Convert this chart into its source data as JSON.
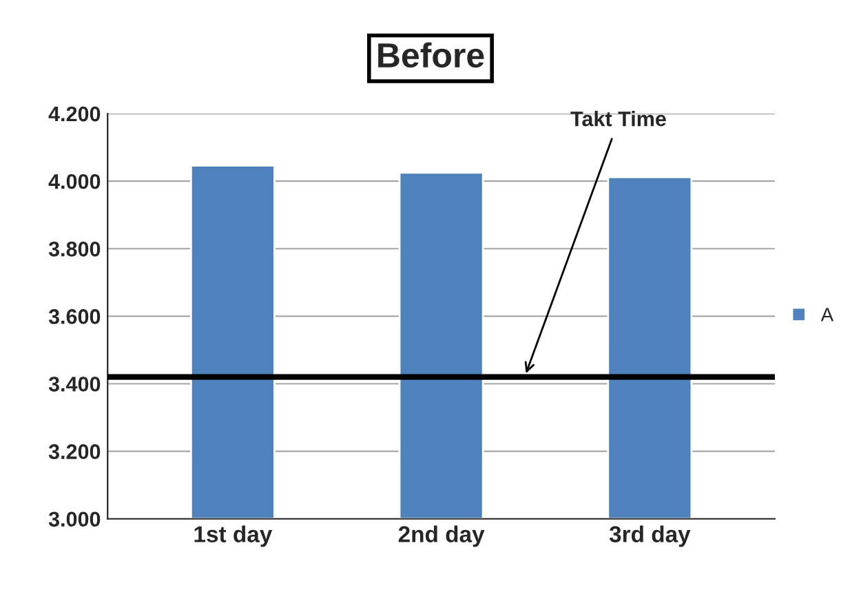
{
  "chart_data": {
    "type": "bar",
    "title": "Before",
    "categories": [
      "1st day",
      "2nd day",
      "3rd day"
    ],
    "series": [
      {
        "name": "A",
        "color": "#4f81bd",
        "values": [
          4.046,
          4.025,
          4.012
        ]
      }
    ],
    "ylim": [
      3.0,
      4.2
    ],
    "yticks": [
      {
        "value": 3.0,
        "label": "3.000"
      },
      {
        "value": 3.2,
        "label": "3.200"
      },
      {
        "value": 3.4,
        "label": "3.400"
      },
      {
        "value": 3.6,
        "label": "3.600"
      },
      {
        "value": 3.8,
        "label": "3.800"
      },
      {
        "value": 4.0,
        "label": "4.000"
      },
      {
        "value": 4.2,
        "label": "4.200"
      }
    ],
    "ref_lines": [
      {
        "axis": "y",
        "value": 3.42,
        "label": "Takt Time",
        "color": "#000000"
      }
    ],
    "grid": "y",
    "legend": "right"
  }
}
